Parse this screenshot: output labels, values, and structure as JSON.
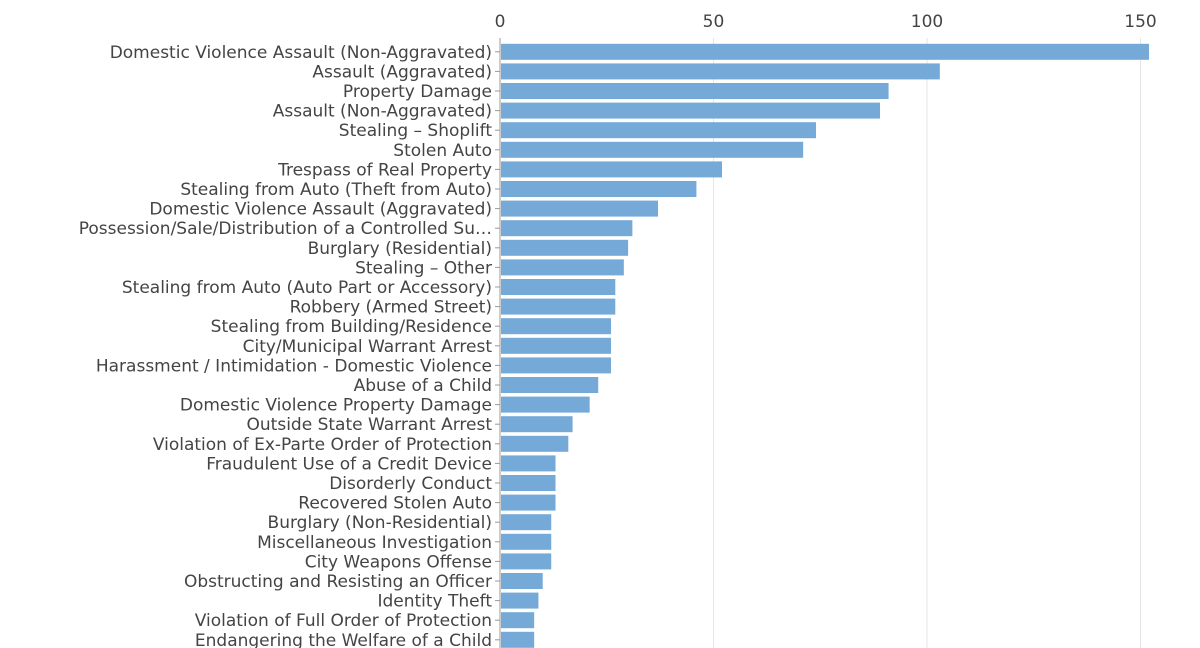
{
  "chart_data": {
    "type": "bar",
    "orientation": "horizontal",
    "title": "",
    "xlabel": "",
    "ylabel": "",
    "xlim": [
      0,
      152
    ],
    "x_ticks": [
      0,
      50,
      100,
      150
    ],
    "grid": true,
    "x_axis_position": "top",
    "bar_color": "#74a9d8",
    "categories": [
      "Domestic Violence Assault (Non-Aggravated)",
      "Assault (Aggravated)",
      "Property Damage",
      "Assault (Non-Aggravated)",
      "Stealing – Shoplift",
      "Stolen Auto",
      "Trespass of Real Property",
      "Stealing from Auto (Theft from Auto)",
      "Domestic Violence Assault (Aggravated)",
      "Possession/Sale/Distribution of a Controlled Su…",
      "Burglary (Residential)",
      "Stealing – Other",
      "Stealing from Auto (Auto Part or Accessory)",
      "Robbery (Armed Street)",
      "Stealing from Building/Residence",
      "City/Municipal Warrant Arrest",
      "Harassment / Intimidation - Domestic Violence",
      "Abuse of a Child",
      "Domestic Violence Property Damage",
      "Outside State Warrant Arrest",
      "Violation of Ex-Parte Order of Protection",
      "Fraudulent Use of a Credit Device",
      "Disorderly Conduct",
      "Recovered Stolen Auto",
      "Burglary (Non-Residential)",
      "Miscellaneous Investigation",
      "City Weapons Offense",
      "Obstructing and Resisting an Officer",
      "Identity Theft",
      "Violation of Full Order of Protection",
      "Endangering the Welfare of a Child"
    ],
    "values": [
      152,
      103,
      91,
      89,
      74,
      71,
      52,
      46,
      37,
      31,
      30,
      29,
      27,
      27,
      26,
      26,
      26,
      23,
      21,
      17,
      16,
      13,
      13,
      13,
      12,
      12,
      12,
      10,
      9,
      8,
      8
    ]
  }
}
